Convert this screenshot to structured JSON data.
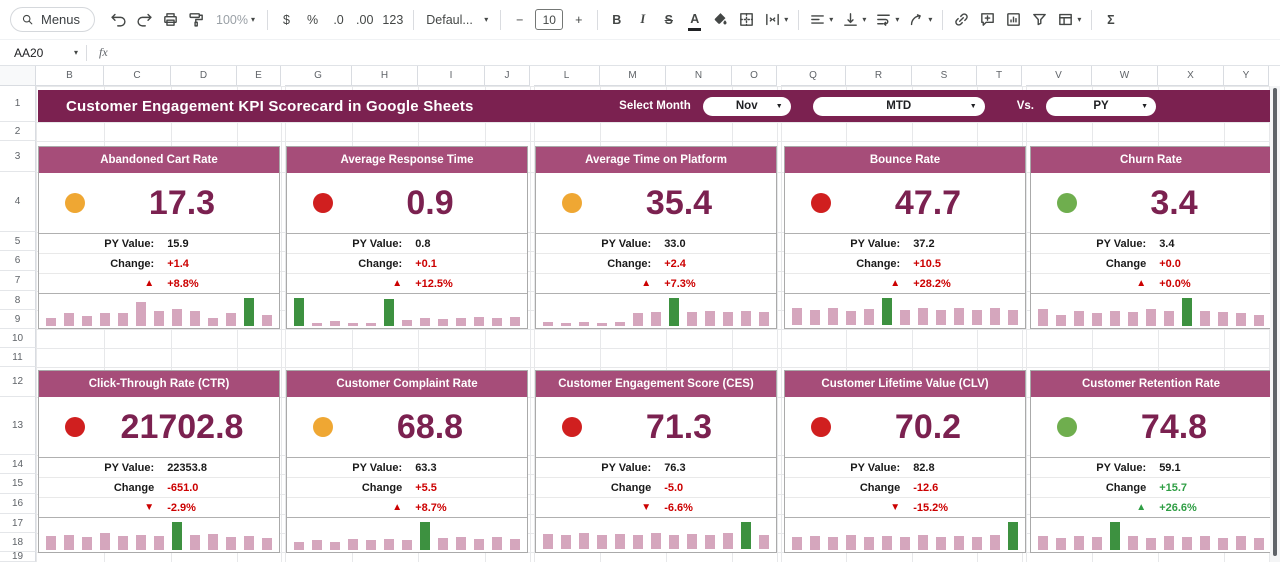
{
  "toolbar": {
    "menus": "Menus",
    "zoom": "100%",
    "currency": "$",
    "percent": "%",
    "decrease_decimal": ".0",
    "increase_decimal": ".00",
    "more_formats": "123",
    "font": "Defaul...",
    "font_size": "10",
    "decrease_size": "−",
    "increase_size": "+",
    "bold": "B",
    "italic": "I",
    "strikethrough": "S",
    "text_color": "A",
    "functions": "Σ"
  },
  "formula_bar": {
    "cell_ref": "AA20",
    "fx": "fx"
  },
  "columns": [
    "B",
    "C",
    "D",
    "E",
    "G",
    "H",
    "I",
    "J",
    "L",
    "M",
    "N",
    "O",
    "Q",
    "R",
    "S",
    "T",
    "V",
    "W",
    "X",
    "Y"
  ],
  "rows": [
    "1",
    "2",
    "3",
    "4",
    "5",
    "6",
    "7",
    "8",
    "9",
    "10",
    "11",
    "12",
    "13",
    "14",
    "15",
    "16",
    "17",
    "18",
    "19"
  ],
  "banner": {
    "title": "Customer Engagement KPI Scorecard in Google Sheets",
    "select_month_label": "Select Month",
    "month_value": "Nov",
    "period_value": "MTD",
    "vs_label": "Vs.",
    "compare_value": "PY"
  },
  "colors": {
    "banner_bg": "#7b2150",
    "card_title_bg": "#a64d79",
    "kpi_value": "#7b2150",
    "negative": "#cc0000",
    "positive": "#2f9e44",
    "spark_bar": "#d5a6bd",
    "spark_highlight": "#3d9140",
    "dot_yellow": "#efa733",
    "dot_red": "#d01f1f",
    "dot_green": "#6fae4e"
  },
  "cards": [
    {
      "title": "Abandoned Cart Rate",
      "status": "yellow",
      "value": "17.3",
      "py_label": "PY Value:",
      "py_value": "15.9",
      "change_label": "Change:",
      "change_value": "+1.4",
      "direction": "up",
      "trend": "negative",
      "pct": "+8.8%",
      "sparkline": {
        "values": [
          0.3,
          0.45,
          0.35,
          0.45,
          0.45,
          0.85,
          0.55,
          0.6,
          0.55,
          0.3,
          0.45,
          1.0,
          0.4
        ],
        "highlight": [
          11
        ]
      }
    },
    {
      "title": "Average Response Time",
      "status": "red",
      "value": "0.9",
      "py_label": "PY Value:",
      "py_value": "0.8",
      "change_label": "Change:",
      "change_value": "+0.1",
      "direction": "up",
      "trend": "negative",
      "pct": "+12.5%",
      "sparkline": {
        "values": [
          1.0,
          0.12,
          0.18,
          0.12,
          0.1,
          0.95,
          0.22,
          0.3,
          0.25,
          0.3,
          0.33,
          0.28,
          0.33
        ],
        "highlight": [
          0,
          5
        ]
      }
    },
    {
      "title": "Average Time on Platform",
      "status": "yellow",
      "value": "35.4",
      "py_label": "PY Value:",
      "py_value": "33.0",
      "change_label": "Change:",
      "change_value": "+2.4",
      "direction": "up",
      "trend": "negative",
      "pct": "+7.3%",
      "sparkline": {
        "values": [
          0.15,
          0.12,
          0.15,
          0.12,
          0.15,
          0.45,
          0.5,
          1.0,
          0.5,
          0.55,
          0.5,
          0.55,
          0.5
        ],
        "highlight": [
          7
        ]
      }
    },
    {
      "title": "Bounce Rate",
      "status": "red",
      "value": "47.7",
      "py_label": "PY Value:",
      "py_value": "37.2",
      "change_label": "Change:",
      "change_value": "+10.5",
      "direction": "up",
      "trend": "negative",
      "pct": "+28.2%",
      "sparkline": {
        "values": [
          0.6,
          0.55,
          0.62,
          0.5,
          0.58,
          0.95,
          0.55,
          0.6,
          0.55,
          0.62,
          0.55,
          0.6,
          0.55
        ],
        "highlight": [
          5
        ]
      }
    },
    {
      "title": "Churn Rate",
      "status": "green",
      "value": "3.4",
      "py_label": "PY Value:",
      "py_value": "3.4",
      "change_label": "Change",
      "change_value": "+0.0",
      "direction": "up",
      "trend": "negative",
      "pct": "+0.0%",
      "sparkline": {
        "values": [
          0.6,
          0.4,
          0.52,
          0.45,
          0.55,
          0.5,
          0.6,
          0.52,
          1.0,
          0.55,
          0.5,
          0.45,
          0.38
        ],
        "highlight": [
          8
        ]
      }
    },
    {
      "title": "Click-Through Rate (CTR)",
      "status": "red",
      "value": "21702.8",
      "py_label": "PY Value:",
      "py_value": "22353.8",
      "change_label": "Change",
      "change_value": "-651.0",
      "direction": "down",
      "trend": "negative",
      "pct": "-2.9%",
      "sparkline": {
        "values": [
          0.5,
          0.55,
          0.45,
          0.6,
          0.5,
          0.55,
          0.5,
          1.0,
          0.52,
          0.56,
          0.46,
          0.5,
          0.44
        ],
        "highlight": [
          7
        ]
      }
    },
    {
      "title": "Customer Complaint Rate",
      "status": "yellow",
      "value": "68.8",
      "py_label": "PY Value:",
      "py_value": "63.3",
      "change_label": "Change",
      "change_value": "+5.5",
      "direction": "up",
      "trend": "negative",
      "pct": "+8.7%",
      "sparkline": {
        "values": [
          0.3,
          0.36,
          0.3,
          0.4,
          0.35,
          0.4,
          0.35,
          1.0,
          0.42,
          0.46,
          0.4,
          0.45,
          0.4
        ],
        "highlight": [
          7
        ]
      }
    },
    {
      "title": "Customer Engagement Score (CES)",
      "status": "red",
      "value": "71.3",
      "py_label": "PY Value:",
      "py_value": "76.3",
      "change_label": "Change",
      "change_value": "-5.0",
      "direction": "down",
      "trend": "negative",
      "pct": "-6.6%",
      "sparkline": {
        "values": [
          0.55,
          0.5,
          0.56,
          0.5,
          0.55,
          0.5,
          0.56,
          0.5,
          0.55,
          0.5,
          0.56,
          0.95,
          0.5
        ],
        "highlight": [
          11
        ]
      }
    },
    {
      "title": "Customer Lifetime Value (CLV)",
      "status": "red",
      "value": "70.2",
      "py_label": "PY Value:",
      "py_value": "82.8",
      "change_label": "Change",
      "change_value": "-12.6",
      "direction": "down",
      "trend": "negative",
      "pct": "-15.2%",
      "sparkline": {
        "values": [
          0.45,
          0.5,
          0.45,
          0.52,
          0.45,
          0.5,
          0.45,
          0.52,
          0.45,
          0.5,
          0.45,
          0.52,
          1.0
        ],
        "highlight": [
          12
        ]
      }
    },
    {
      "title": "Customer Retention Rate",
      "status": "green",
      "value": "74.8",
      "py_label": "PY Value:",
      "py_value": "59.1",
      "change_label": "Change",
      "change_value": "+15.7",
      "direction": "up",
      "trend": "positive",
      "pct": "+26.6%",
      "sparkline": {
        "values": [
          0.5,
          0.44,
          0.5,
          0.45,
          1.0,
          0.5,
          0.44,
          0.5,
          0.45,
          0.5,
          0.44,
          0.5,
          0.44
        ],
        "highlight": [
          4
        ]
      }
    }
  ]
}
